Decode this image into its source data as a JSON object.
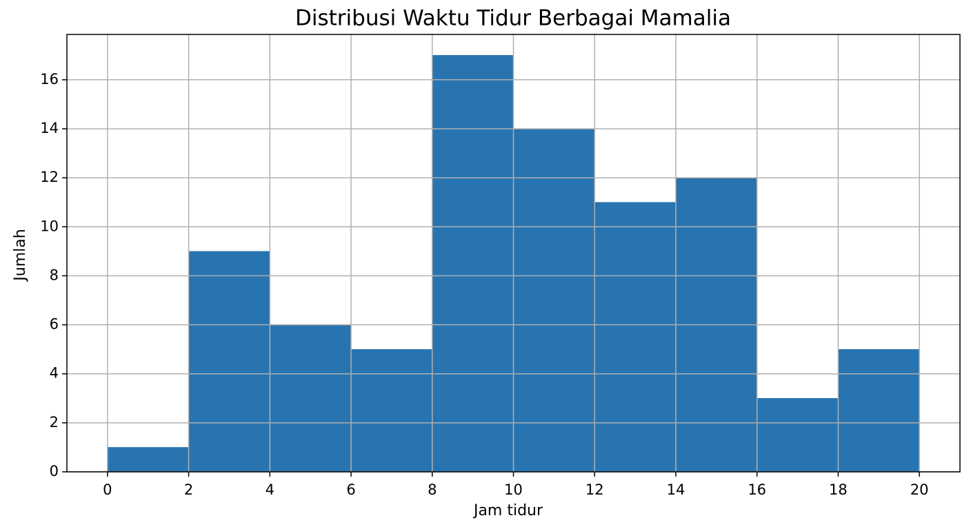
{
  "chart_data": {
    "type": "histogram",
    "title": "Distribusi Waktu Tidur Berbagai Mamalia",
    "xlabel": "Jam tidur",
    "ylabel": "Jumlah",
    "bins": [
      0,
      2,
      4,
      6,
      8,
      10,
      12,
      14,
      16,
      18,
      20
    ],
    "counts": [
      1,
      9,
      6,
      5,
      17,
      14,
      11,
      12,
      3,
      5
    ],
    "color": "#2874b0",
    "xlim": [
      -1,
      21
    ],
    "ylim": [
      0,
      17.85
    ],
    "xticks": [
      0,
      2,
      4,
      6,
      8,
      10,
      12,
      14,
      16,
      18,
      20
    ],
    "yticks": [
      0,
      2,
      4,
      6,
      8,
      10,
      12,
      14,
      16
    ],
    "grid": true
  }
}
